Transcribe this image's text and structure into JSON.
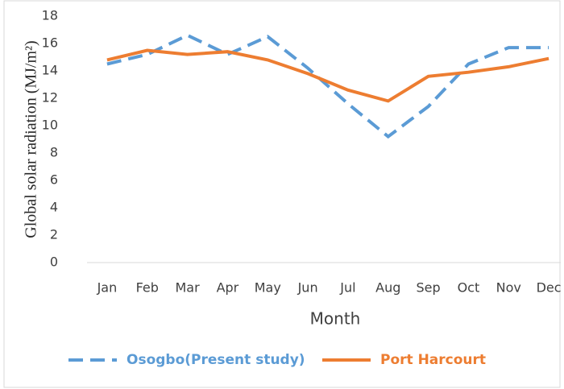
{
  "chart_data": {
    "type": "line",
    "y_label": "Global solar radiation (MJ/m²)",
    "x_label": "Month",
    "categories": [
      "Jan",
      "Feb",
      "Mar",
      "Apr",
      "May",
      "Jun",
      "Jul",
      "Aug",
      "Sep",
      "Oct",
      "Nov",
      "Dec"
    ],
    "series": [
      {
        "name": "Osogbo(Present study)",
        "color": "#5b9bd5",
        "line_style": "dashed",
        "values": [
          14.5,
          15.2,
          16.6,
          15.2,
          16.5,
          14.2,
          11.6,
          9.2,
          11.4,
          14.5,
          15.7,
          15.7
        ]
      },
      {
        "name": "Port Harcourt",
        "color": "#ed7d31",
        "line_style": "solid",
        "values": [
          14.8,
          15.5,
          15.2,
          15.4,
          14.8,
          13.8,
          12.6,
          11.8,
          13.6,
          13.9,
          14.3,
          14.9
        ]
      }
    ],
    "ylim": [
      0,
      18
    ],
    "yticks": [
      0,
      2,
      4,
      6,
      8,
      10,
      12,
      14,
      16,
      18
    ],
    "grid": false,
    "legend": "bottom"
  }
}
